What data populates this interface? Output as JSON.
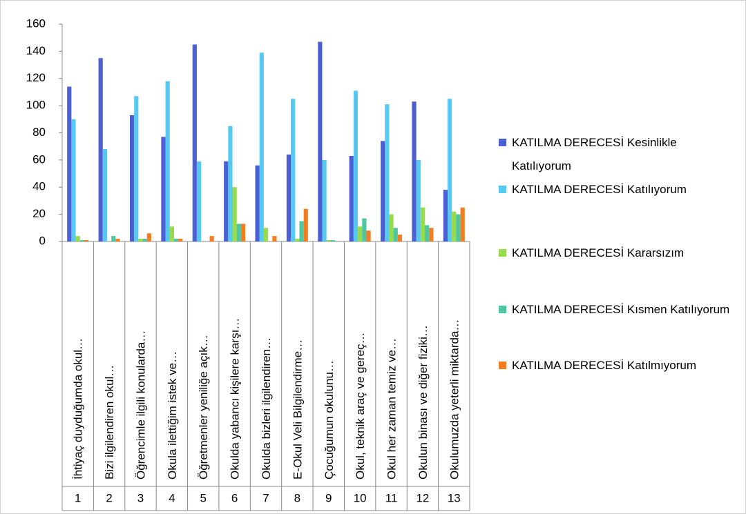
{
  "chart_data": {
    "type": "bar",
    "categories": [
      "İhtiyaç duyduğumda okul…",
      "Bizi ilgilendiren okul…",
      "Öğrencimle ilgili konularda…",
      "Okula ilettiğim istek ve…",
      "Öğretmenler yeniliğe açık…",
      "Okulda yabancı kişilere karşı…",
      "Okulda bizleri ilgilendiren…",
      "E-Okul Veli Bilgilendirme…",
      "Çocuğumun okulunu…",
      "Okul, teknik araç ve gereç…",
      "Okul her zaman temiz ve…",
      "Okulun binası ve diğer fiziki…",
      "Okulumuzda yeterli miktarda…"
    ],
    "category_numbers": [
      "1",
      "2",
      "3",
      "4",
      "5",
      "6",
      "7",
      "8",
      "9",
      "10",
      "11",
      "12",
      "13"
    ],
    "series": [
      {
        "name": "KATILMA DERECESİ Kesinlikle Katılıyorum",
        "color": "#4c5fd2",
        "values": [
          114,
          135,
          93,
          77,
          145,
          59,
          56,
          64,
          147,
          63,
          74,
          103,
          38
        ]
      },
      {
        "name": "KATILMA DERECESİ Katılıyorum",
        "color": "#57c8f0",
        "values": [
          90,
          68,
          107,
          118,
          59,
          85,
          139,
          105,
          60,
          111,
          101,
          60,
          105
        ]
      },
      {
        "name": "KATILMA DERECESİ Kararsızım",
        "color": "#97dc4c",
        "values": [
          4,
          0,
          2,
          11,
          0,
          40,
          10,
          2,
          1,
          11,
          20,
          25,
          22
        ]
      },
      {
        "name": "KATILMA DERECESİ Kısmen Katılıyorum",
        "color": "#4ec6a2",
        "values": [
          1,
          4,
          2,
          2,
          0,
          13,
          0,
          15,
          1,
          17,
          10,
          12,
          20
        ]
      },
      {
        "name": "KATILMA DERECESİ Katılmıyorum",
        "color": "#f47d22",
        "values": [
          1,
          2,
          6,
          2,
          4,
          13,
          4,
          24,
          0,
          8,
          5,
          10,
          25
        ]
      }
    ],
    "ylim": [
      0,
      160
    ],
    "yticks": [
      0,
      20,
      40,
      60,
      80,
      100,
      120,
      140,
      160
    ],
    "legend": "right"
  }
}
